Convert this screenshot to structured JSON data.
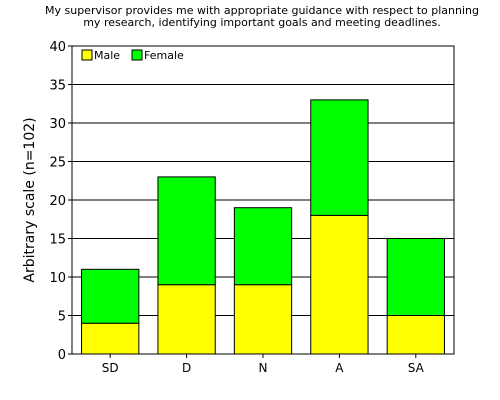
{
  "chart_data": {
    "type": "bar",
    "stacked": true,
    "title_lines": [
      "My supervisor provides me with appropriate guidance with respect to planning",
      "my research, identifying important goals and meeting deadlines."
    ],
    "ylabel": "Arbitrary scale (n=102)",
    "xlabel": "",
    "categories": [
      "SD",
      "D",
      "N",
      "A",
      "SA"
    ],
    "series": [
      {
        "name": "Male",
        "color": "#ffff00",
        "values": [
          4,
          9,
          9,
          18,
          5
        ]
      },
      {
        "name": "Female",
        "color": "#00ff00",
        "values": [
          7,
          14,
          10,
          15,
          10
        ]
      }
    ],
    "ylim": [
      0,
      40
    ],
    "yticks": [
      0,
      5,
      10,
      15,
      20,
      25,
      30,
      35,
      40
    ],
    "grid": "horizontal",
    "legend_position": "top-left"
  }
}
